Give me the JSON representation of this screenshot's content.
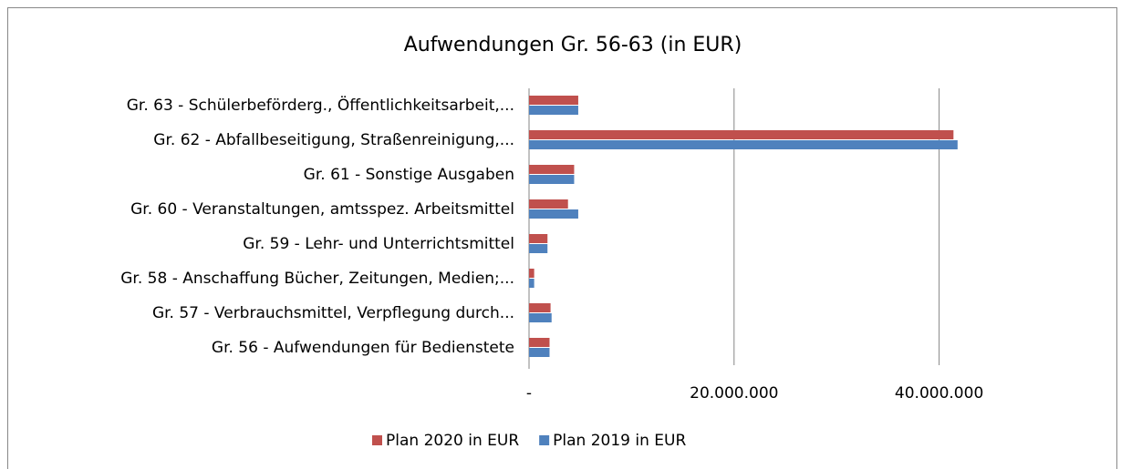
{
  "chart_data": {
    "type": "hbar",
    "title": "Aufwendungen Gr. 56-63 (in EUR)",
    "categories": [
      "Gr. 63 - Schülerbeförderg., Öffentlichkeitsarbeit,...",
      "Gr. 62 - Abfallbeseitigung, Straßenreinigung,...",
      "Gr. 61 - Sonstige Ausgaben",
      "Gr. 60 - Veranstaltungen, amtsspez. Arbeitsmittel",
      "Gr. 59 - Lehr- und Unterrichtsmittel",
      "Gr. 58 - Anschaffung Bücher, Zeitungen, Medien;...",
      "Gr. 57 - Verbrauchsmittel, Verpflegung durch...",
      "Gr. 56 - Aufwendungen für Bedienstete"
    ],
    "series": [
      {
        "name": "Plan 2020 in EUR",
        "color": "#c0504d",
        "values": [
          4800000,
          41400000,
          4400000,
          3800000,
          1800000,
          500000,
          2100000,
          2000000
        ]
      },
      {
        "name": "Plan 2019 in EUR",
        "color": "#4f81bd",
        "values": [
          4800000,
          41800000,
          4400000,
          4800000,
          1800000,
          500000,
          2200000,
          2000000
        ]
      }
    ],
    "xlim": [
      0,
      50000000
    ],
    "xticks": [
      {
        "value": 0,
        "label": "-"
      },
      {
        "value": 20000000,
        "label": "20.000.000"
      },
      {
        "value": 40000000,
        "label": "40.000.000"
      }
    ],
    "grid": true,
    "legend": "bottom"
  }
}
